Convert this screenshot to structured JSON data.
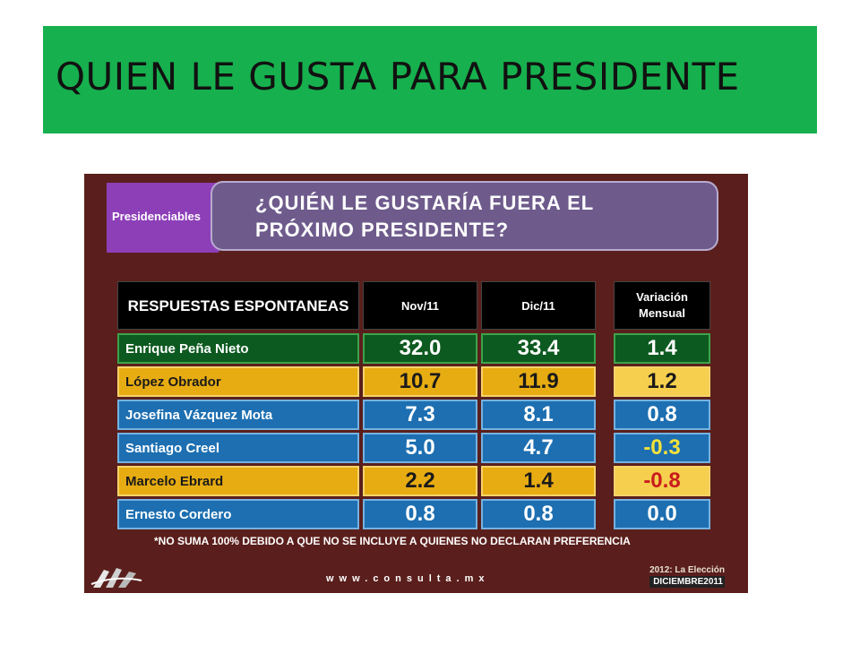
{
  "slide_title": "QUIEN LE GUSTA PARA PRESIDENTE",
  "tab_label": "Presidenciables",
  "question": "¿QUIÉN LE GUSTARÍA FUERA EL PRÓXIMO PRESIDENTE?",
  "table": {
    "headers": {
      "responses": "RESPUESTAS ESPONTANEAS",
      "nov": "Nov/11",
      "dic": "Dic/11",
      "variation": "Variación Mensual"
    },
    "rows": [
      {
        "name": "Enrique Peña Nieto",
        "nov": "32.0",
        "dic": "33.4",
        "variation": "1.4",
        "row_color": "#0d5a20"
      },
      {
        "name": "López Obrador",
        "nov": "10.7",
        "dic": "11.9",
        "variation": "1.2",
        "row_color": "#e7ac12"
      },
      {
        "name": "Josefina Vázquez Mota",
        "nov": "7.3",
        "dic": "8.1",
        "variation": "0.8",
        "row_color": "#1d6fb1"
      },
      {
        "name": "Santiago Creel",
        "nov": "5.0",
        "dic": "4.7",
        "variation": "-0.3",
        "row_color": "#1d6fb1"
      },
      {
        "name": "Marcelo Ebrard",
        "nov": "2.2",
        "dic": "1.4",
        "variation": "-0.8",
        "row_color": "#e7ac12"
      },
      {
        "name": "Ernesto Cordero",
        "nov": "0.8",
        "dic": "0.8",
        "variation": "0.0",
        "row_color": "#1d6fb1"
      }
    ]
  },
  "footnote": "*NO SUMA 100% DEBIDO A QUE NO SE INCLUYE A QUIENES NO DECLARAN PREFERENCIA",
  "url": "www.consulta.mx",
  "brand": {
    "line1": "2012: La Elección",
    "line2": "DICIEMBRE2011"
  },
  "colors": {
    "title_banner": "#17b04e",
    "slide_background": "#5a1f1c",
    "tab": "#8d3fb8",
    "question_banner": "#6e5b8c",
    "negative_small": "#f3e23b",
    "negative_large": "#c81c1c"
  }
}
